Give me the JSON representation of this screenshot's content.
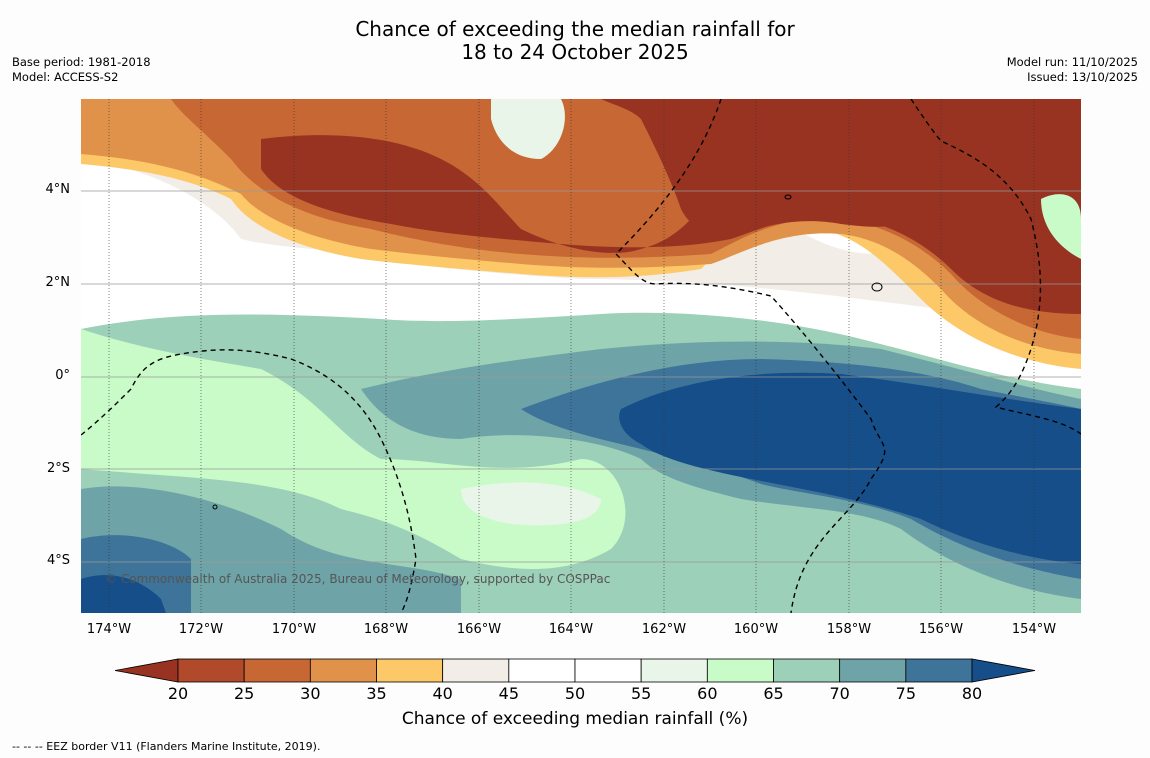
{
  "title": {
    "line1": "Chance of exceeding the median rainfall for",
    "line2": "18 to 24 October 2025"
  },
  "meta": {
    "base_period": "Base period: 1981-2018",
    "model": "Model: ACCESS-S2",
    "model_run": "Model run: 11/10/2025",
    "issued": "Issued: 13/10/2025"
  },
  "map": {
    "lat_labels": [
      "4°N",
      "2°N",
      "0°",
      "2°S",
      "4°S"
    ],
    "lon_labels": [
      "174°W",
      "172°W",
      "170°W",
      "168°W",
      "166°W",
      "164°W",
      "162°W",
      "160°W",
      "158°W",
      "156°W",
      "154°W"
    ],
    "copyright": "© Commonwealth of Australia 2025, Bureau of Meteorology, supported by COSPPac"
  },
  "colorbar": {
    "ticks": [
      "20",
      "25",
      "30",
      "35",
      "40",
      "45",
      "50",
      "55",
      "60",
      "65",
      "70",
      "75",
      "80"
    ],
    "colors": [
      "#983322",
      "#b04a2a",
      "#c76734",
      "#e0924a",
      "#fdc868",
      "#f2ede7",
      "#ffffff",
      "#ffffff",
      "#e9f5e9",
      "#c8fbc8",
      "#9dd0b8",
      "#6ea4a8",
      "#3e7499",
      "#154e88"
    ],
    "title": "Chance of exceeding median rainfall (%)"
  },
  "footnote": "--  --  -- EEZ border V11 (Flanders Marine Institute, 2019)."
}
